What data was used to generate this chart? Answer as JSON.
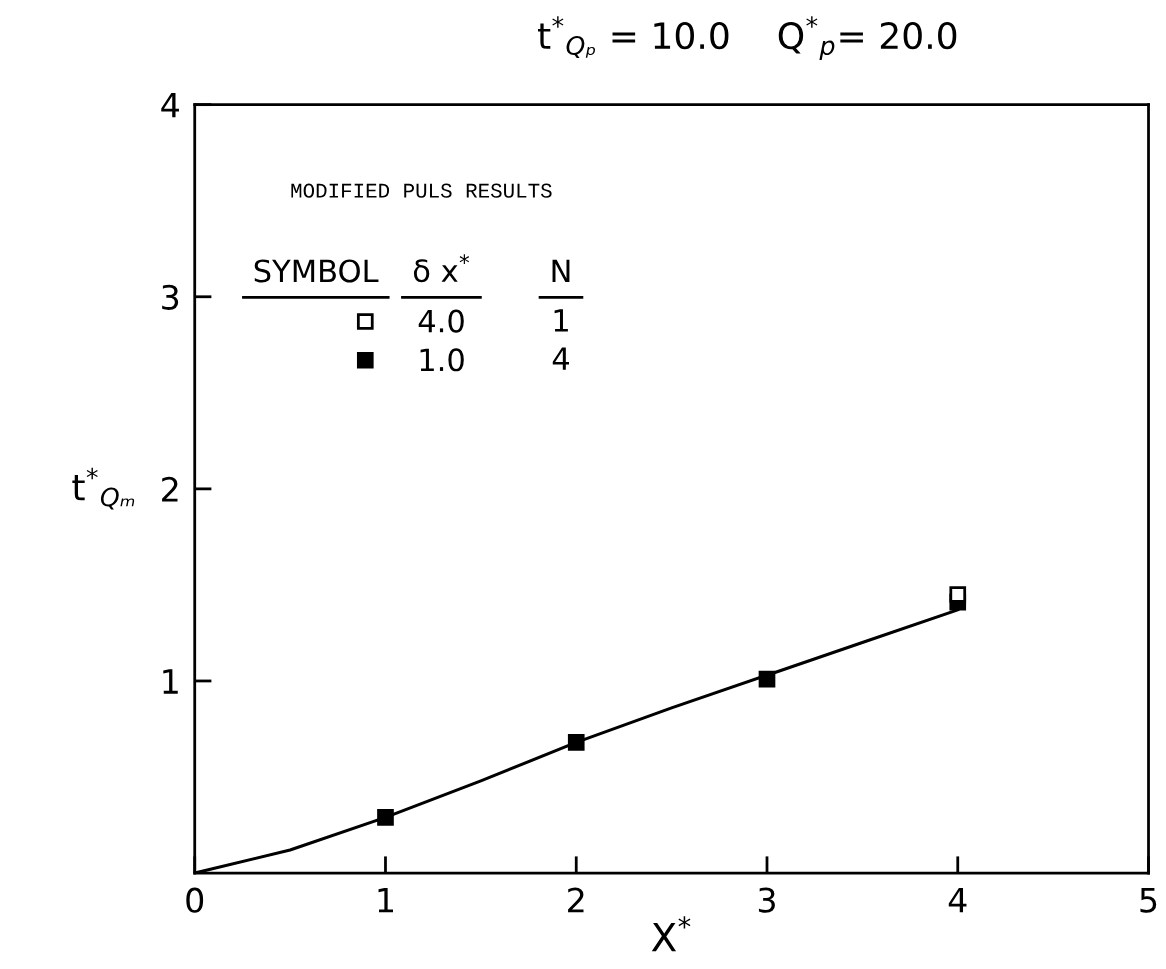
{
  "chart_data": {
    "type": "scatter",
    "title": "t$^{*}$$_{Qₚ}$ = 10.0    Q$^{*}$$_{p}$= 20.0",
    "xlabel": "X$^{*}$",
    "ylabel": "t$^{*}$$_{Qₘ}$",
    "legend_title": "MODIFIED PULS RESULTS",
    "annotations": [
      "SYMBOL",
      "δ x$^{*}$",
      "N",
      "1",
      "4"
    ],
    "xlim": [
      0,
      5
    ],
    "ylim": [
      0,
      4
    ],
    "xticks": [
      0,
      1,
      2,
      3,
      4,
      5
    ],
    "yticks": [
      1,
      2,
      3,
      4
    ],
    "grid": false,
    "legend": "top left",
    "marker": "square",
    "series": [
      {
        "name": "4.0",
        "color": "#ffffff",
        "x": [
          4
        ],
        "values": [
          1.45
        ]
      },
      {
        "name": "1.0",
        "color": "#000000",
        "x": [
          1,
          2,
          3,
          4
        ],
        "values": [
          0.29,
          0.68,
          1.01,
          1.41
        ]
      },
      {
        "type": "line",
        "color": "#000000",
        "marker": "none",
        "line_style": "solid",
        "x": [
          0,
          0.5,
          1,
          1.5,
          2,
          2.5,
          3,
          3.5,
          4
        ],
        "values": [
          0,
          0.12,
          0.29,
          0.48,
          0.68,
          0.86,
          1.03,
          1.2,
          1.37
        ]
      }
    ]
  }
}
